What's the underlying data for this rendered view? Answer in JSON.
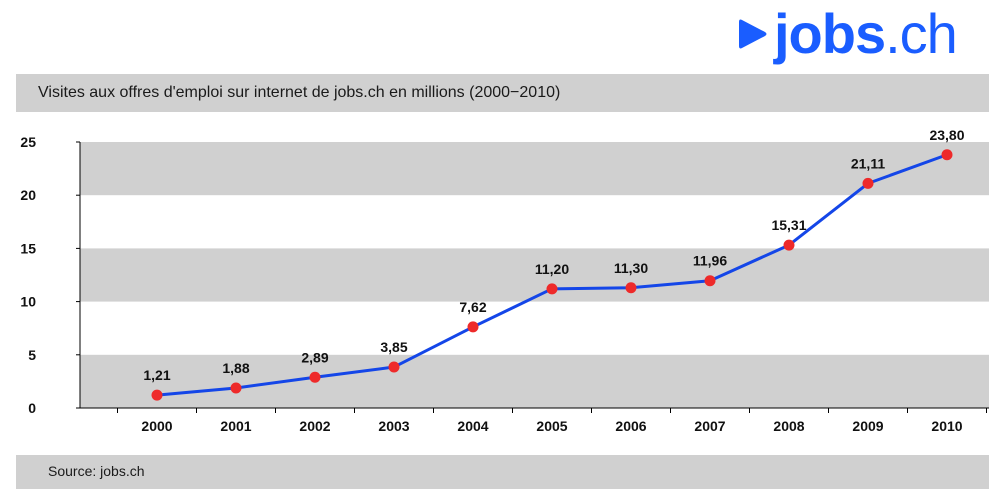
{
  "brand": {
    "logo_text": "jobs",
    "logo_suffix": ".ch",
    "color": "#1a5dff"
  },
  "title": "Visites aux offres d'emploi sur internet de jobs.ch en millions (2000−2010)",
  "source": "Source: jobs.ch",
  "chart_data": {
    "type": "line",
    "title": "Visites aux offres d'emploi sur internet de jobs.ch en millions (2000−2010)",
    "xlabel": "",
    "ylabel": "",
    "categories": [
      "2000",
      "2001",
      "2002",
      "2003",
      "2004",
      "2005",
      "2006",
      "2007",
      "2008",
      "2009",
      "2010"
    ],
    "series": [
      {
        "values": [
          1.21,
          1.88,
          2.89,
          3.85,
          7.62,
          11.2,
          11.3,
          11.96,
          15.31,
          21.11,
          23.8
        ],
        "labels": [
          "1,21",
          "1,88",
          "2,89",
          "3,85",
          "7,62",
          "11,20",
          "11,30",
          "11,96",
          "15,31",
          "21,11",
          "23,80"
        ]
      }
    ],
    "ylim": [
      0,
      25
    ],
    "yticks": [
      "0",
      "5",
      "10",
      "15",
      "20",
      "25"
    ],
    "grid": "alternating horizontal bands",
    "legend": "none",
    "colors": {
      "line": "#1446e8",
      "marker": "#ee2a2a",
      "band": "#d0d0d0"
    }
  }
}
